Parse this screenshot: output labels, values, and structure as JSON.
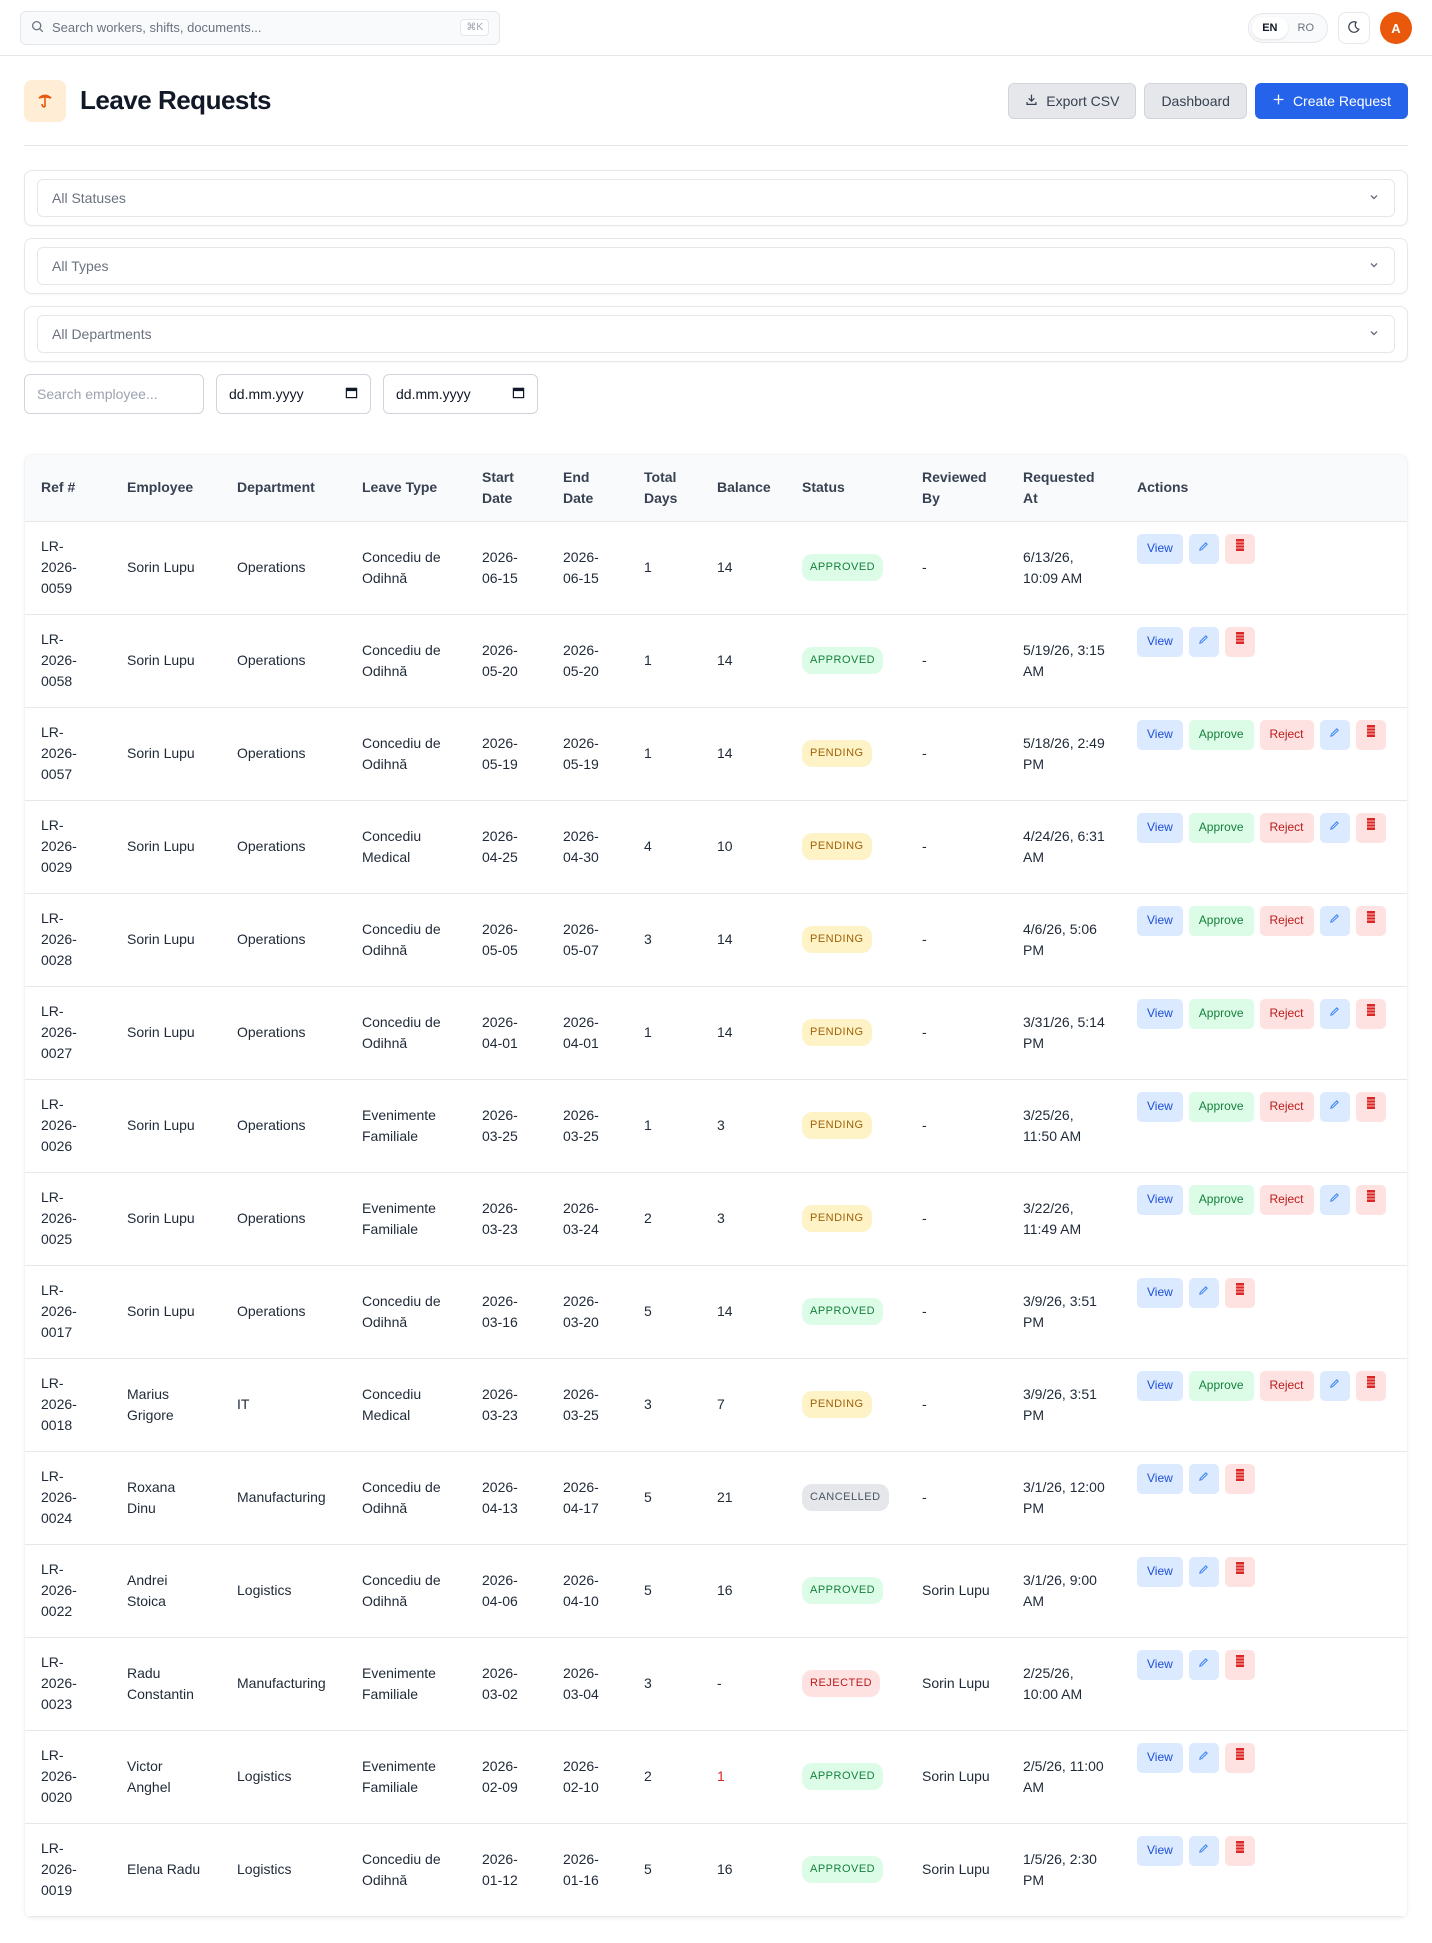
{
  "topbar": {
    "search_placeholder": "Search workers, shifts, documents...",
    "shortcut": "⌘K",
    "lang_en": "EN",
    "lang_ro": "RO",
    "avatar_initial": "A"
  },
  "header": {
    "title": "Leave Requests",
    "export_label": "Export CSV",
    "dashboard_label": "Dashboard",
    "create_label": "Create Request"
  },
  "filters": {
    "status": "All Statuses",
    "type": "All Types",
    "department": "All Departments",
    "employee_placeholder": "Search employee...",
    "date_from": "dd.mm.yyyy",
    "date_to": "dd.mm.yyyy"
  },
  "table": {
    "columns": [
      "Ref #",
      "Employee",
      "Department",
      "Leave Type",
      "Start Date",
      "End Date",
      "Total Days",
      "Balance",
      "Status",
      "Reviewed By",
      "Requested At",
      "Actions"
    ],
    "action_labels": {
      "view": "View",
      "approve": "Approve",
      "reject": "Reject"
    },
    "rows": [
      {
        "ref": "LR-2026-0059",
        "employee": "Sorin Lupu",
        "department": "Operations",
        "type": "Concediu de Odihnă",
        "start": "2026-06-15",
        "end": "2026-06-15",
        "days": "1",
        "balance": "14",
        "status": "APPROVED",
        "reviewed": "-",
        "requested": "6/13/26, 10:09 AM"
      },
      {
        "ref": "LR-2026-0058",
        "employee": "Sorin Lupu",
        "department": "Operations",
        "type": "Concediu de Odihnă",
        "start": "2026-05-20",
        "end": "2026-05-20",
        "days": "1",
        "balance": "14",
        "status": "APPROVED",
        "reviewed": "-",
        "requested": "5/19/26, 3:15 AM"
      },
      {
        "ref": "LR-2026-0057",
        "employee": "Sorin Lupu",
        "department": "Operations",
        "type": "Concediu de Odihnă",
        "start": "2026-05-19",
        "end": "2026-05-19",
        "days": "1",
        "balance": "14",
        "status": "PENDING",
        "reviewed": "-",
        "requested": "5/18/26, 2:49 PM"
      },
      {
        "ref": "LR-2026-0029",
        "employee": "Sorin Lupu",
        "department": "Operations",
        "type": "Concediu Medical",
        "start": "2026-04-25",
        "end": "2026-04-30",
        "days": "4",
        "balance": "10",
        "status": "PENDING",
        "reviewed": "-",
        "requested": "4/24/26, 6:31 AM"
      },
      {
        "ref": "LR-2026-0028",
        "employee": "Sorin Lupu",
        "department": "Operations",
        "type": "Concediu de Odihnă",
        "start": "2026-05-05",
        "end": "2026-05-07",
        "days": "3",
        "balance": "14",
        "status": "PENDING",
        "reviewed": "-",
        "requested": "4/6/26, 5:06 PM"
      },
      {
        "ref": "LR-2026-0027",
        "employee": "Sorin Lupu",
        "department": "Operations",
        "type": "Concediu de Odihnă",
        "start": "2026-04-01",
        "end": "2026-04-01",
        "days": "1",
        "balance": "14",
        "status": "PENDING",
        "reviewed": "-",
        "requested": "3/31/26, 5:14 PM"
      },
      {
        "ref": "LR-2026-0026",
        "employee": "Sorin Lupu",
        "department": "Operations",
        "type": "Evenimente Familiale",
        "start": "2026-03-25",
        "end": "2026-03-25",
        "days": "1",
        "balance": "3",
        "status": "PENDING",
        "reviewed": "-",
        "requested": "3/25/26, 11:50 AM"
      },
      {
        "ref": "LR-2026-0025",
        "employee": "Sorin Lupu",
        "department": "Operations",
        "type": "Evenimente Familiale",
        "start": "2026-03-23",
        "end": "2026-03-24",
        "days": "2",
        "balance": "3",
        "status": "PENDING",
        "reviewed": "-",
        "requested": "3/22/26, 11:49 AM"
      },
      {
        "ref": "LR-2026-0017",
        "employee": "Sorin Lupu",
        "department": "Operations",
        "type": "Concediu de Odihnă",
        "start": "2026-03-16",
        "end": "2026-03-20",
        "days": "5",
        "balance": "14",
        "status": "APPROVED",
        "reviewed": "-",
        "requested": "3/9/26, 3:51 PM"
      },
      {
        "ref": "LR-2026-0018",
        "employee": "Marius Grigore",
        "department": "IT",
        "type": "Concediu Medical",
        "start": "2026-03-23",
        "end": "2026-03-25",
        "days": "3",
        "balance": "7",
        "status": "PENDING",
        "reviewed": "-",
        "requested": "3/9/26, 3:51 PM"
      },
      {
        "ref": "LR-2026-0024",
        "employee": "Roxana Dinu",
        "department": "Manufacturing",
        "type": "Concediu de Odihnă",
        "start": "2026-04-13",
        "end": "2026-04-17",
        "days": "5",
        "balance": "21",
        "status": "CANCELLED",
        "reviewed": "-",
        "requested": "3/1/26, 12:00 PM"
      },
      {
        "ref": "LR-2026-0022",
        "employee": "Andrei Stoica",
        "department": "Logistics",
        "type": "Concediu de Odihnă",
        "start": "2026-04-06",
        "end": "2026-04-10",
        "days": "5",
        "balance": "16",
        "status": "APPROVED",
        "reviewed": "Sorin Lupu",
        "requested": "3/1/26, 9:00 AM"
      },
      {
        "ref": "LR-2026-0023",
        "employee": "Radu Constantin",
        "department": "Manufacturing",
        "type": "Evenimente Familiale",
        "start": "2026-03-02",
        "end": "2026-03-04",
        "days": "3",
        "balance": "-",
        "status": "REJECTED",
        "reviewed": "Sorin Lupu",
        "requested": "2/25/26, 10:00 AM"
      },
      {
        "ref": "LR-2026-0020",
        "employee": "Victor Anghel",
        "department": "Logistics",
        "type": "Evenimente Familiale",
        "start": "2026-02-09",
        "end": "2026-02-10",
        "days": "2",
        "balance": "1",
        "balance_low": true,
        "status": "APPROVED",
        "reviewed": "Sorin Lupu",
        "requested": "2/5/26, 11:00 AM"
      },
      {
        "ref": "LR-2026-0019",
        "employee": "Elena Radu",
        "department": "Logistics",
        "type": "Concediu de Odihnă",
        "start": "2026-01-12",
        "end": "2026-01-16",
        "days": "5",
        "balance": "16",
        "status": "APPROVED",
        "reviewed": "Sorin Lupu",
        "requested": "1/5/26, 2:30 PM"
      }
    ]
  },
  "colors": {
    "primary": "#2563eb",
    "avatar": "#ea580c",
    "approved": "#15803d",
    "pending": "#a16207",
    "rejected": "#b91c1c"
  }
}
